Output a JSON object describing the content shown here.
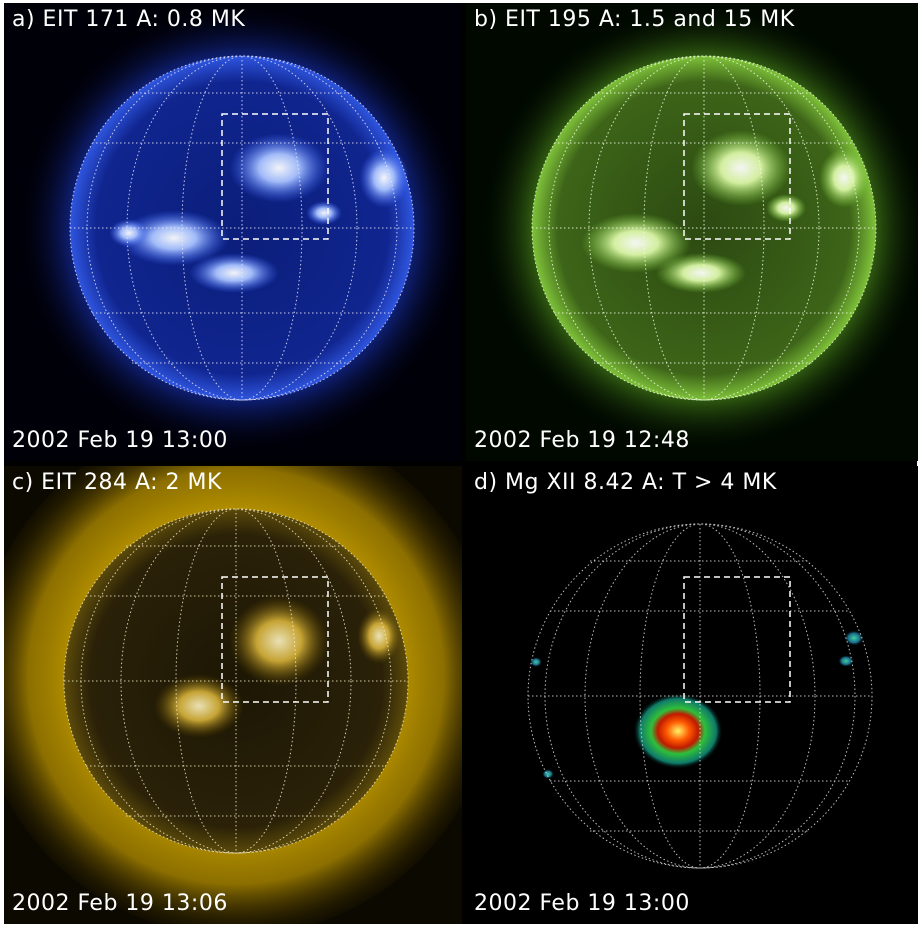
{
  "panels": [
    {
      "title": "a) EIT 171 A: 0.8 MK",
      "date": "2002 Feb 19 13:00",
      "color": "#2a5cff"
    },
    {
      "title": "b) EIT 195 A: 1.5 and 15 MK",
      "date": "2002 Feb 19 12:48",
      "color": "#7fd23a"
    },
    {
      "title": "c) EIT 284 A: 2 MK",
      "date": "2002 Feb 19 13:06",
      "color": "#c9a400"
    },
    {
      "title": "d) Mg XII 8.42 A: T > 4 MK",
      "date": "2002 Feb 19 13:00",
      "color": "#000000"
    }
  ]
}
